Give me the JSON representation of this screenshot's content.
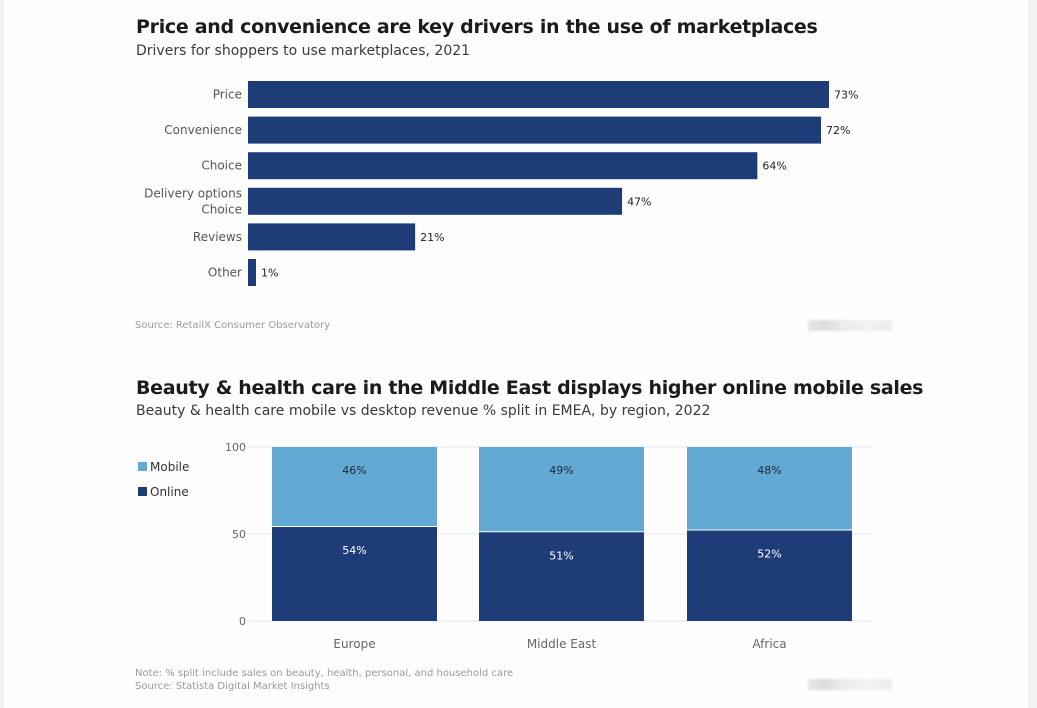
{
  "charts": {
    "marketplaces": {
      "title": "Price and convenience are key drivers in the use of marketplaces",
      "subtitle": "Drivers for shoppers to use marketplaces, 2021",
      "source": "Source: RetailX Consumer Observatory"
    },
    "beauty": {
      "title": "Beauty & health care in the Middle East displays higher online mobile sales",
      "subtitle": "Beauty & health care mobile vs desktop revenue % split in EMEA, by region, 2022",
      "note": "Note: % split include sales on beauty, health, personal, and household care",
      "source": "Source: Statista Digital Market Insights"
    }
  },
  "chart_data": [
    {
      "type": "bar",
      "orientation": "horizontal",
      "title": "Price and convenience are key drivers in the use of marketplaces",
      "subtitle": "Drivers for shoppers to use marketplaces, 2021",
      "categories": [
        [
          "Price"
        ],
        [
          "Convenience"
        ],
        [
          "Choice"
        ],
        [
          "Delivery options",
          "Choice"
        ],
        [
          "Reviews"
        ],
        [
          "Other"
        ]
      ],
      "values": [
        73,
        72,
        64,
        47,
        21,
        1
      ],
      "value_labels": [
        "73%",
        "72%",
        "64%",
        "47%",
        "21%",
        "1%"
      ],
      "unit": "%",
      "xlabel": "",
      "ylabel": "",
      "xlim": [
        0,
        73
      ],
      "grid": false,
      "legend": "none",
      "color": "#1d3c78",
      "source": "Source: RetailX Consumer Observatory"
    },
    {
      "type": "bar",
      "stacked": true,
      "orientation": "vertical",
      "title": "Beauty & health care in the Middle East displays higher online mobile sales",
      "subtitle": "Beauty & health care mobile vs desktop revenue % split in EMEA, by region, 2022",
      "categories": [
        "Europe",
        "Middle East",
        "Africa"
      ],
      "series": [
        {
          "name": "Online",
          "values": [
            54,
            51,
            52
          ],
          "labels": [
            "54%",
            "51%",
            "52%"
          ],
          "color": "#1d3c78",
          "label_color": "#ffffff"
        },
        {
          "name": "Mobile",
          "values": [
            46,
            49,
            48
          ],
          "labels": [
            "46%",
            "49%",
            "48%"
          ],
          "color": "#62a9d3",
          "label_color": "#1a2a3a"
        }
      ],
      "legend_order": [
        "Mobile",
        "Online"
      ],
      "legend": "left",
      "ylim": [
        0,
        100
      ],
      "yticks": [
        0,
        50,
        100
      ],
      "grid": true,
      "xlabel": "",
      "ylabel": "",
      "note": "Note: % split include sales on beauty, health, personal, and household care",
      "source": "Source: Statista Digital Market Insights"
    }
  ]
}
